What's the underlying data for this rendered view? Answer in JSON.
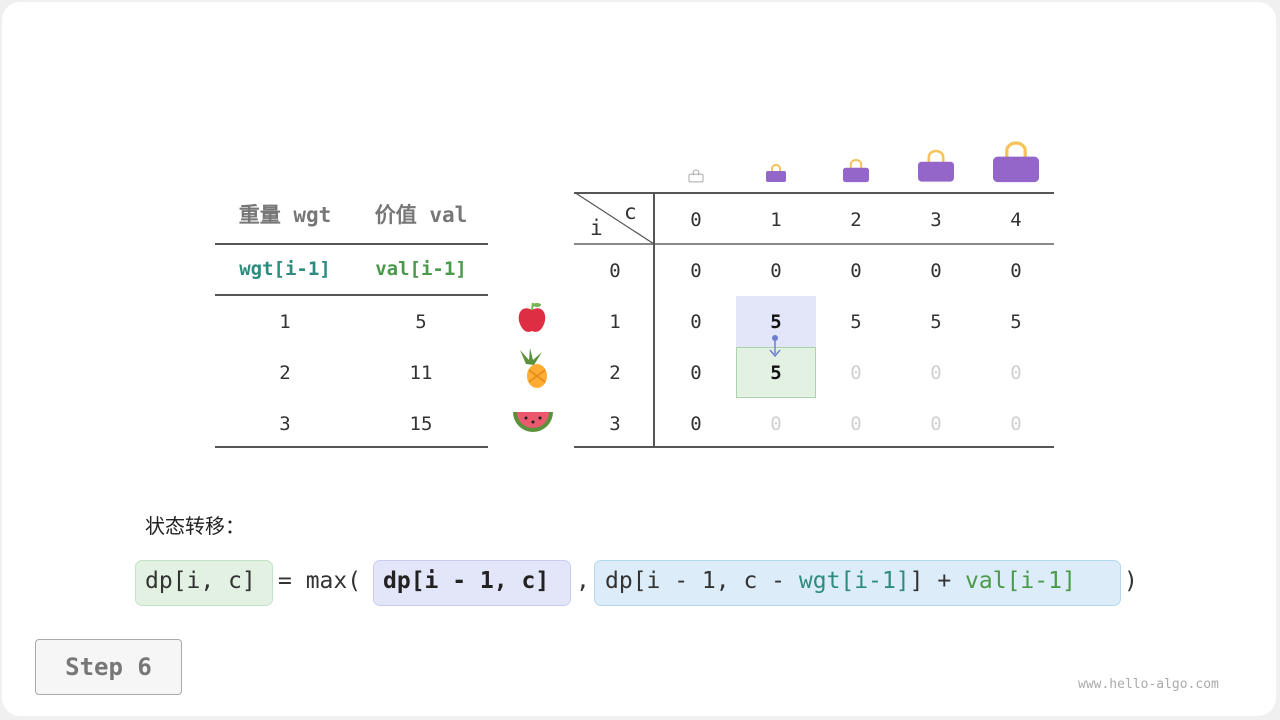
{
  "item_table": {
    "headers": [
      "重量 wgt",
      "价值 val"
    ],
    "subheaders": [
      "wgt[i-1]",
      "val[i-1]"
    ],
    "rows": [
      [
        "1",
        "5"
      ],
      [
        "2",
        "11"
      ],
      [
        "3",
        "15"
      ]
    ],
    "item_icons": [
      "apple-icon",
      "pineapple-icon",
      "watermelon-icon"
    ]
  },
  "dp_table": {
    "corner_c": "c",
    "corner_i": "i",
    "col_headers": [
      "0",
      "1",
      "2",
      "3",
      "4"
    ],
    "row_headers": [
      "0",
      "1",
      "2",
      "3"
    ],
    "rows": [
      [
        {
          "v": "0"
        },
        {
          "v": "0"
        },
        {
          "v": "0"
        },
        {
          "v": "0"
        },
        {
          "v": "0"
        }
      ],
      [
        {
          "v": "0"
        },
        {
          "v": "5",
          "hl": "blue"
        },
        {
          "v": "5"
        },
        {
          "v": "5"
        },
        {
          "v": "5"
        }
      ],
      [
        {
          "v": "0"
        },
        {
          "v": "5",
          "hl": "green"
        },
        {
          "v": "0",
          "faded": true
        },
        {
          "v": "0",
          "faded": true
        },
        {
          "v": "0",
          "faded": true
        }
      ],
      [
        {
          "v": "0"
        },
        {
          "v": "0",
          "faded": true
        },
        {
          "v": "0",
          "faded": true
        },
        {
          "v": "0",
          "faded": true
        },
        {
          "v": "0",
          "faded": true
        }
      ]
    ],
    "bag_icons": [
      "bag-outline-icon",
      "bag-icon",
      "bag-icon",
      "bag-icon",
      "bag-icon"
    ]
  },
  "transition_label": "状态转移：",
  "formula": {
    "lhs": "dp[i, c]",
    "eq": "= max(",
    "arg1": "dp[i - 1, c]",
    "comma": ",",
    "arg2_a": "dp[i - 1, c - ",
    "arg2_wgt": "wgt[i-1]",
    "arg2_b": "] + ",
    "arg2_val": "val[i-1]",
    "close": ")"
  },
  "step_button": "Step 6",
  "watermark": "www.hello-algo.com",
  "colors": {
    "teal": "#2e8b7f",
    "green": "#4a9a4a",
    "blue_hl": "#e3e6f8",
    "green_hl": "#e3f1e3",
    "bag": "#9466c9",
    "handle": "#f5c35a"
  }
}
